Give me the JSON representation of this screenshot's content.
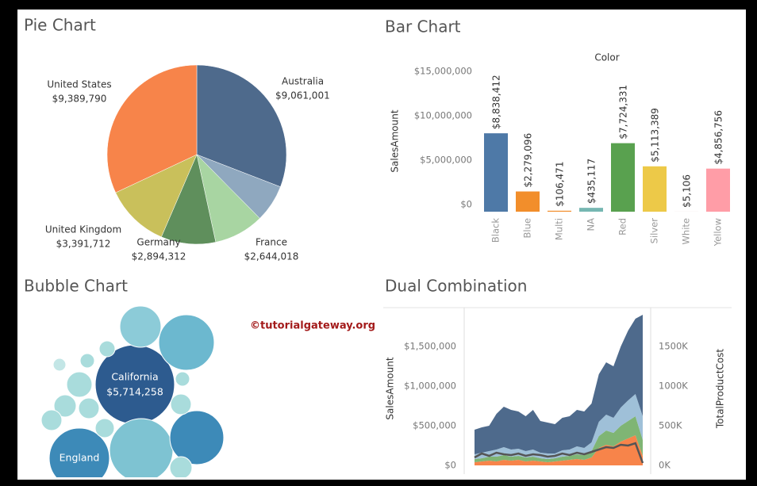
{
  "chart_data": [
    {
      "type": "pie",
      "title": "Pie Chart",
      "categories": [
        "Australia",
        null,
        "France",
        "Germany",
        "United Kingdom",
        "United States"
      ],
      "values": [
        9061001,
        1977845,
        2644018,
        2894312,
        3391712,
        9389790
      ],
      "value_labels": [
        "$9,061,001",
        null,
        "$2,644,018",
        "$2,894,312",
        "$3,391,712",
        "$9,389,790"
      ],
      "colors": [
        "#4e6a8c",
        "#8fa8bf",
        "#a8d5a2",
        "#5f8f5c",
        "#c9c05b",
        "#f7844a"
      ]
    },
    {
      "type": "bar",
      "title": "Bar Chart",
      "subtitle": "Color",
      "ylabel": "SalesAmount",
      "categories": [
        "Black",
        "Blue",
        "Multi",
        "NA",
        "Red",
        "Silver",
        "White",
        "Yellow"
      ],
      "values": [
        8838412,
        2279096,
        106471,
        435117,
        7724331,
        5113389,
        5106,
        4856756
      ],
      "value_labels": [
        "$8,838,412",
        "$2,279,096",
        "$106,471",
        "$435,117",
        "$7,724,331",
        "$5,113,389",
        "$5,106",
        "$4,856,756"
      ],
      "colors": [
        "#4e79a7",
        "#f28e2b",
        "#f28e2b",
        "#76b7b2",
        "#59a14f",
        "#edc948",
        "#bab0ac",
        "#ff9da7"
      ],
      "ylim": [
        0,
        16000000
      ],
      "yticks": [
        {
          "value": 0,
          "label": "$0"
        },
        {
          "value": 5000000,
          "label": "$5,000,000"
        },
        {
          "value": 10000000,
          "label": "$10,000,000"
        },
        {
          "value": 15000000,
          "label": "$15,000,000"
        }
      ]
    },
    {
      "type": "bubble",
      "title": "Bubble Chart",
      "annotation": "©tutorialgateway.org",
      "labels": [
        "California",
        "England",
        null,
        null,
        null,
        null,
        null,
        null,
        null,
        null,
        null,
        null,
        null,
        null,
        null,
        null,
        null
      ],
      "values": [
        5714258,
        3300000,
        3657000,
        2642000,
        1545000,
        2800000,
        585000,
        448000,
        386000,
        386000,
        329000,
        386000,
        185000,
        229000,
        185000,
        146000,
        448000
      ],
      "value_labels": [
        "$5,714,258",
        null,
        null,
        null,
        null,
        null,
        null,
        null,
        null,
        null,
        null,
        null,
        null,
        null,
        null,
        null,
        null
      ],
      "colors": [
        "#2d5b8f",
        "#3d8ab8",
        "#7ec3d2",
        "#3d8ab8",
        "#8ccbd8",
        "#6cb8cf",
        "#a9dcdc",
        "#a9dcdc",
        "#a9dcdc",
        "#a9dcdc",
        "#a9dcdc",
        "#a9dcdc",
        "#a9dcdc",
        "#a9dcdc",
        "#a9dcdc",
        "#c3e6e6",
        "#a9dcdc"
      ]
    },
    {
      "type": "area",
      "title": "Dual Combination",
      "ylabel": "SalesAmount",
      "y2label": "TotalProductCost",
      "ylim": [
        0,
        2000000
      ],
      "yticks": [
        {
          "value": 0,
          "label": "$0"
        },
        {
          "value": 500000,
          "label": "$500,000"
        },
        {
          "value": 1000000,
          "label": "$1,000,000"
        },
        {
          "value": 1500000,
          "label": "$1,500,000"
        }
      ],
      "y2lim": [
        0,
        2000000
      ],
      "y2ticks": [
        {
          "value": 0,
          "label": "0K"
        },
        {
          "value": 500000,
          "label": "500K"
        },
        {
          "value": 1000000,
          "label": "1000K"
        },
        {
          "value": 1500000,
          "label": "1500K"
        }
      ],
      "series": [
        {
          "color": "#f7844a",
          "values": [
            40000,
            50000,
            60000,
            50000,
            70000,
            60000,
            70000,
            50000,
            60000,
            50000,
            40000,
            50000,
            60000,
            70000,
            80000,
            70000,
            100000,
            220000,
            260000,
            240000,
            300000,
            340000,
            380000,
            120000
          ]
        },
        {
          "color": "#7fb574",
          "values": [
            40000,
            40000,
            50000,
            60000,
            60000,
            50000,
            50000,
            50000,
            50000,
            40000,
            40000,
            40000,
            50000,
            50000,
            60000,
            60000,
            80000,
            150000,
            180000,
            170000,
            200000,
            220000,
            240000,
            200000
          ]
        },
        {
          "color": "#9fc0d8",
          "values": [
            60000,
            70000,
            70000,
            90000,
            100000,
            90000,
            90000,
            80000,
            90000,
            70000,
            70000,
            60000,
            80000,
            80000,
            100000,
            90000,
            110000,
            180000,
            200000,
            190000,
            230000,
            260000,
            280000,
            300000
          ]
        },
        {
          "color": "#4e6a8c",
          "values": [
            310000,
            320000,
            320000,
            450000,
            510000,
            500000,
            470000,
            440000,
            500000,
            400000,
            390000,
            370000,
            410000,
            420000,
            460000,
            460000,
            490000,
            600000,
            660000,
            650000,
            770000,
            880000,
            950000,
            1280000
          ]
        },
        {
          "type": "line",
          "axis": "y2",
          "color": "#555555",
          "values": [
            100000,
            150000,
            120000,
            160000,
            140000,
            130000,
            150000,
            120000,
            140000,
            130000,
            110000,
            120000,
            150000,
            130000,
            160000,
            140000,
            170000,
            200000,
            230000,
            220000,
            260000,
            250000,
            280000,
            30000
          ]
        }
      ]
    }
  ]
}
